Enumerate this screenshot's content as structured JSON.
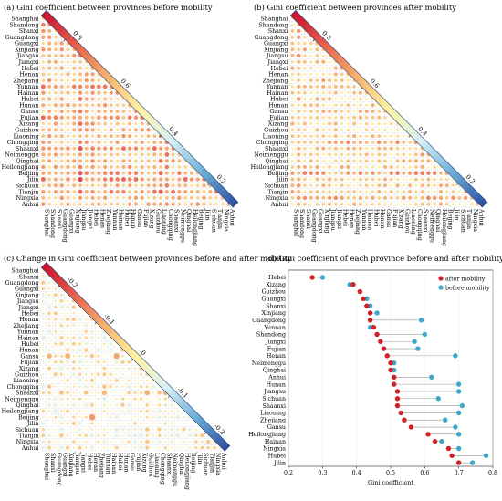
{
  "panels": {
    "a": {
      "title": "(a) Gini coefficient between provinces before mobility",
      "provinces": [
        "Shanghai",
        "Shandong",
        "Shanxi",
        "Guangdong",
        "Guangxi",
        "Xinjiang",
        "Jiangsu",
        "Jiangxi",
        "Hebei",
        "Henan",
        "Zhejiang",
        "Yunnan",
        "Hainan",
        "Hubei",
        "Hunan",
        "Gansu",
        "Fujian",
        "Xizang",
        "Guizhou",
        "Liaoning",
        "Chongqing",
        "Shaanxi",
        "Neimenggu",
        "Qinghai",
        "Heilongjiang",
        "Beijing",
        "Jilin",
        "Sichuan",
        "Tianjin",
        "Ningxia",
        "Anhui"
      ],
      "colorbar_ticks": [
        "0.8",
        "0.6",
        "0.4",
        "0.2"
      ],
      "colorbar_range": [
        0.1,
        0.9
      ]
    },
    "b": {
      "title": "(b) Gini coefficient between provinces after mobility",
      "provinces": [
        "Shanghai",
        "Shandong",
        "Shanxi",
        "Guangdong",
        "Guangxi",
        "Xinjiang",
        "Jiangsu",
        "Jiangxi",
        "Hebei",
        "Henan",
        "Zhejiang",
        "Yunnan",
        "Hainan",
        "Hubei",
        "Hunan",
        "Gansu",
        "Fujian",
        "Xizang",
        "Guizhou",
        "Liaoning",
        "Chongqing",
        "Shaanxi",
        "Neimenggu",
        "Qinghai",
        "Heilongjiang",
        "Beijing",
        "Jilin",
        "Sichuan",
        "Tianjin",
        "Ningxia",
        "Anhui"
      ],
      "colorbar_ticks": [
        "0.8",
        "0.6",
        "0.4",
        "0.2"
      ],
      "colorbar_range": [
        0.1,
        0.9
      ]
    },
    "c": {
      "title": "(c) Change in Gini coefficient between provinces  before and after mobility",
      "provinces": [
        "Shanghai",
        "Shanxi",
        "Guangdong",
        "Guangxi",
        "Xinjiang",
        "Jiangsu",
        "Jiangxi",
        "Hebei",
        "Henan",
        "Zhejiang",
        "Yunnan",
        "Hainan",
        "Hubei",
        "Hunan",
        "Gansu",
        "Fujian",
        "Xizang",
        "Guizhou",
        "Liaoning",
        "Chongqing",
        "Shaanxi",
        "Neimenggu",
        "Qinghai",
        "Heilongjiang",
        "Beijing",
        "Jilin",
        "Sichuan",
        "Tianjin",
        "Ningxia",
        "Anhui"
      ],
      "colorbar_ticks": [
        "-0.2",
        "-0.1",
        "0",
        "-0.1",
        "-0.2"
      ],
      "colorbar_range": [
        -0.25,
        0.25
      ]
    },
    "d": {
      "title": "(d) Gini coefficient of each province before and after mobility",
      "xlabel": "Gini coefficient",
      "legend": [
        "after mobility",
        "before mobility"
      ],
      "xticks": [
        "0.2",
        "0.3",
        "0.4",
        "0.5",
        "0.6",
        "0.7",
        "0.8"
      ]
    }
  },
  "colors": {
    "after": "#d0202a",
    "before": "#3fa7c9",
    "gradient": [
      "#c8102e",
      "#e8604a",
      "#f6b26b",
      "#fff3a0",
      "#d8f0f4",
      "#6baed6",
      "#2c4fa0"
    ]
  },
  "chart_data": [
    {
      "type": "heatmap",
      "panel": "a",
      "title": "(a) Gini coefficient between provinces before mobility",
      "value_range": [
        0.1,
        0.9
      ],
      "note": "lower-triangular correlogram; circle size and color encode the between-province Gini coefficient (typical values ~0.55-0.75)"
    },
    {
      "type": "heatmap",
      "panel": "b",
      "title": "(b) Gini coefficient between provinces after mobility",
      "value_range": [
        0.1,
        0.9
      ]
    },
    {
      "type": "heatmap",
      "panel": "c",
      "title": "(c) Change in Gini coefficient between provinces  before and after mobility",
      "value_range": [
        -0.25,
        0.25
      ]
    },
    {
      "type": "scatter",
      "panel": "d",
      "title": "(d) Gini coefficient of each province before and after mobility",
      "xlabel": "Gini coefficient",
      "xlim": [
        0.2,
        0.8
      ],
      "categories": [
        "Hebei",
        "Xizang",
        "Guizhou",
        "Guangxi",
        "Shanxi",
        "Xinjiang",
        "Guangdong",
        "Yunnan",
        "Shandong",
        "Jiangxi",
        "Fujian",
        "Henan",
        "Neimenggu",
        "Qinghai",
        "Anhui",
        "Hunan",
        "Jiangsu",
        "Sichuan",
        "Shaanxi",
        "Liaoning",
        "Zhejiang",
        "Gansu",
        "Heilongjiang",
        "Hainan",
        "Ningxia",
        "Hubei",
        "Jilin"
      ],
      "series": [
        {
          "name": "after mobility",
          "values": [
            0.27,
            0.39,
            0.41,
            0.42,
            0.43,
            0.44,
            0.44,
            0.45,
            0.46,
            0.47,
            0.48,
            0.49,
            0.5,
            0.5,
            0.51,
            0.51,
            0.52,
            0.52,
            0.52,
            0.53,
            0.54,
            0.56,
            0.61,
            0.63,
            0.67,
            0.68,
            0.7
          ]
        },
        {
          "name": "before mobility",
          "values": [
            0.3,
            0.38,
            0.41,
            0.43,
            0.44,
            0.46,
            0.59,
            0.44,
            0.6,
            0.57,
            0.58,
            0.69,
            0.51,
            0.51,
            0.62,
            0.7,
            0.7,
            0.64,
            0.71,
            0.7,
            0.66,
            0.69,
            0.7,
            0.65,
            0.7,
            0.78,
            0.74
          ]
        }
      ]
    }
  ]
}
